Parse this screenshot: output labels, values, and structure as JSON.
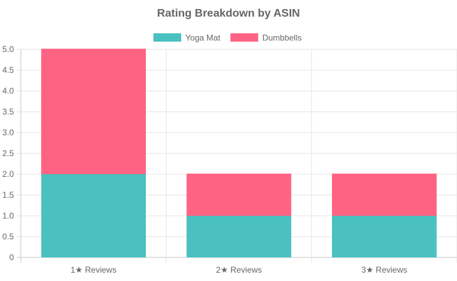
{
  "chart_data": {
    "type": "bar",
    "stacked": true,
    "title": "Rating Breakdown by ASIN",
    "categories": [
      "1★ Reviews",
      "2★ Reviews",
      "3★ Reviews"
    ],
    "series": [
      {
        "name": "Yoga Mat",
        "values": [
          2,
          1,
          1
        ],
        "color": "#4bc0c0"
      },
      {
        "name": "Dumbbells",
        "values": [
          3,
          1,
          1
        ],
        "color": "#ff6384"
      }
    ],
    "ylim": [
      0,
      5
    ],
    "yticks": [
      "0",
      "0.5",
      "1.0",
      "1.5",
      "2.0",
      "2.5",
      "3.0",
      "3.5",
      "4.0",
      "4.5",
      "5.0"
    ],
    "grid": true,
    "legend_position": "top"
  }
}
